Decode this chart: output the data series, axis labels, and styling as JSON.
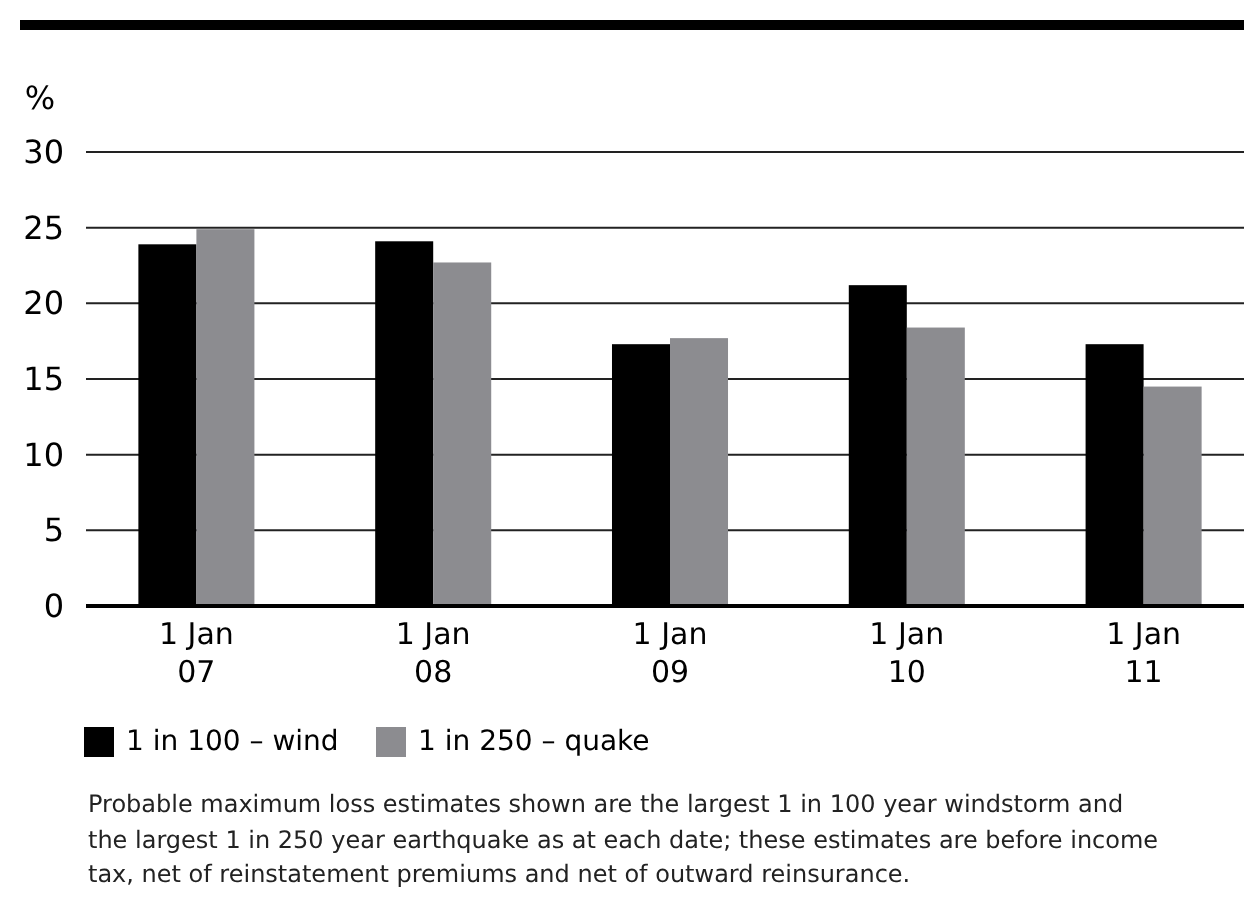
{
  "chart_data": {
    "type": "bar",
    "ylabel": "%",
    "categories": [
      "1 Jan 07",
      "1 Jan 08",
      "1 Jan 09",
      "1 Jan 10",
      "1 Jan 11"
    ],
    "series": [
      {
        "name": "1 in 100 – wind",
        "color": "#000000",
        "values": [
          23.9,
          24.1,
          17.3,
          21.2,
          17.3
        ]
      },
      {
        "name": "1 in 250 – quake",
        "color": "#8c8c90",
        "values": [
          24.9,
          22.7,
          17.7,
          18.4,
          14.5
        ]
      }
    ],
    "ylim": [
      0,
      30
    ],
    "yticks": [
      0,
      5,
      10,
      15,
      20,
      25,
      30
    ],
    "grid": "y",
    "legend": "bottom",
    "annotations": [
      "Probable maximum loss estimates shown are the largest 1 in 100 year windstorm and the largest 1 in 250 year earthquake as at each date; these estimates are before income tax, net of reinstatement premiums and net of outward reinsurance."
    ]
  }
}
